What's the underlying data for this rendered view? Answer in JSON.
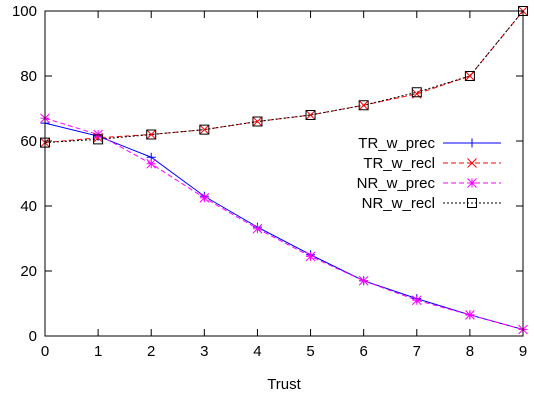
{
  "chart_data": {
    "type": "line",
    "title": "",
    "xlabel": "Trust",
    "ylabel": "",
    "xlim": [
      0,
      9
    ],
    "ylim": [
      0,
      100
    ],
    "x": [
      0,
      1,
      2,
      3,
      4,
      5,
      6,
      7,
      8,
      9
    ],
    "xticks": [
      "0",
      "1",
      "2",
      "3",
      "4",
      "5",
      "6",
      "7",
      "8",
      "9"
    ],
    "yticks": [
      "0",
      "20",
      "40",
      "60",
      "80",
      "100"
    ],
    "grid": false,
    "legend": "right",
    "series": [
      {
        "name": "TR_w_prec",
        "color": "#0000ff",
        "marker": "plus",
        "dash": "solid",
        "values": [
          65.5,
          61.5,
          55,
          43,
          33.5,
          25,
          17,
          11.5,
          6.5,
          2
        ]
      },
      {
        "name": "TR_w_recl",
        "color": "#ff0000",
        "marker": "cross",
        "dash": "dashed",
        "values": [
          59.5,
          61,
          62,
          63.5,
          66,
          68,
          71,
          74.5,
          80,
          100
        ]
      },
      {
        "name": "NR_w_prec",
        "color": "#ff00ff",
        "marker": "star",
        "dash": "dashed",
        "values": [
          67,
          62,
          53,
          42.5,
          33,
          24.5,
          17,
          11,
          6.5,
          2
        ]
      },
      {
        "name": "NR_w_recl",
        "color": "#000000",
        "marker": "square",
        "dash": "dotted",
        "values": [
          59.5,
          60.5,
          62,
          63.5,
          66,
          68,
          71,
          75,
          80,
          100
        ]
      }
    ]
  }
}
